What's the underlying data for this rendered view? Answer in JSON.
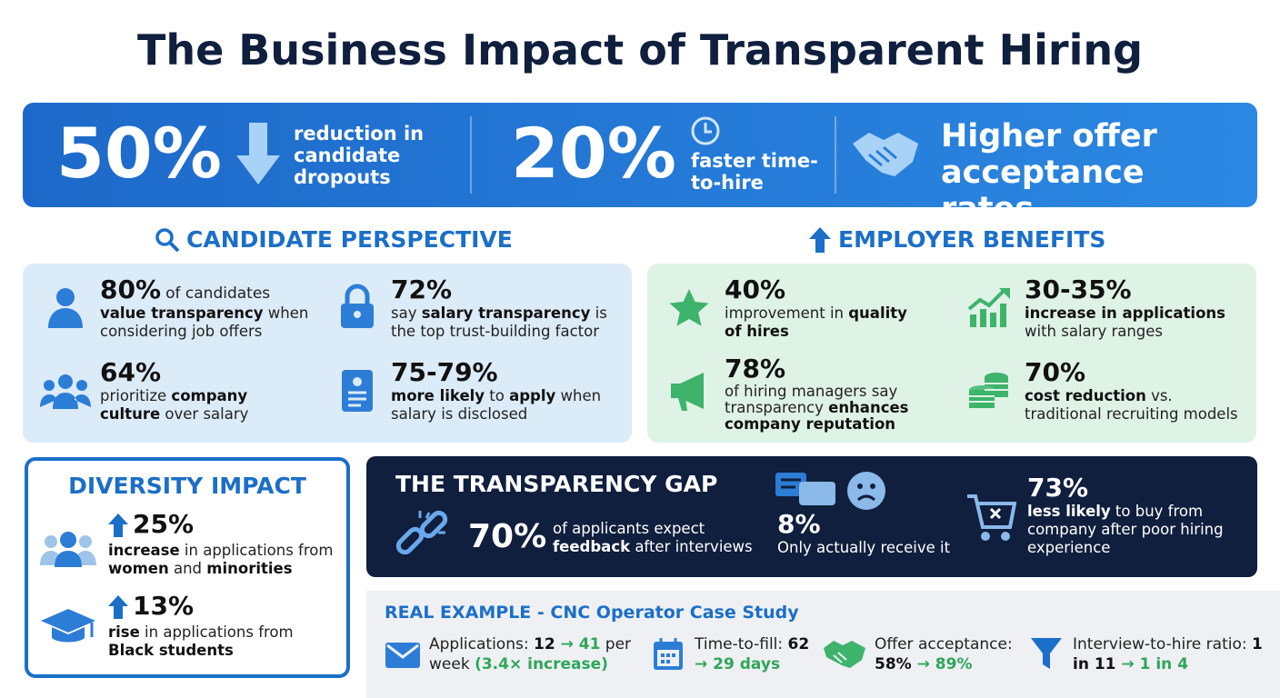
{
  "title": "The Business Impact of Transparent Hiring",
  "banner": {
    "items": [
      {
        "value": "50%",
        "text": "reduction in candidate dropouts"
      },
      {
        "value": "20%",
        "text": "faster time-to-hire"
      },
      {
        "text": "Higher offer acceptance rates"
      }
    ]
  },
  "candidate": {
    "heading": "CANDIDATE PERSPECTIVE",
    "stats": [
      {
        "value": "80%",
        "lead": "of candidates",
        "text": [
          {
            "bold": "value transparency"
          },
          {
            "plain": " when considering job offers"
          }
        ]
      },
      {
        "value": "72%",
        "text": [
          {
            "plain": "say "
          },
          {
            "bold": "salary transparency"
          },
          {
            "plain": " is the top trust-building factor"
          }
        ]
      },
      {
        "value": "64%",
        "text": [
          {
            "plain": "prioritize "
          },
          {
            "bold": "company culture"
          },
          {
            "plain": " over salary"
          }
        ]
      },
      {
        "value": "75-79%",
        "text": [
          {
            "bold": "more likely"
          },
          {
            "plain": " to "
          },
          {
            "bold": "apply"
          },
          {
            "plain": " when salary is disclosed"
          }
        ]
      }
    ]
  },
  "employer": {
    "heading": "EMPLOYER BENEFITS",
    "stats": [
      {
        "value": "40%",
        "text": [
          {
            "plain": "improvement in "
          },
          {
            "bold": "quality of hires"
          }
        ]
      },
      {
        "value": "30-35%",
        "text": [
          {
            "bold": "increase in applications"
          },
          {
            "plain": " with salary ranges"
          }
        ]
      },
      {
        "value": "78%",
        "text": [
          {
            "plain": "of hiring managers say transparency "
          },
          {
            "bold": "enhances company reputation"
          }
        ]
      },
      {
        "value": "70%",
        "text": [
          {
            "bold": "cost reduction"
          },
          {
            "plain": " vs. traditional recruiting models"
          }
        ]
      }
    ]
  },
  "diversity": {
    "heading": "DIVERSITY IMPACT",
    "stats": [
      {
        "value": "25%",
        "text": [
          {
            "bold": "increase"
          },
          {
            "plain": " in applications from "
          },
          {
            "bold": "women"
          },
          {
            "plain": " and "
          },
          {
            "bold": "minorities"
          }
        ]
      },
      {
        "value": "13%",
        "text": [
          {
            "bold": "rise"
          },
          {
            "plain": " in applications from "
          },
          {
            "bold": "Black students"
          }
        ]
      }
    ]
  },
  "gap": {
    "heading": "THE TRANSPARENCY GAP",
    "items": [
      {
        "value": "70%",
        "text": [
          {
            "plain": "of applicants expect "
          },
          {
            "bold": "feedback"
          },
          {
            "plain": " after interviews"
          }
        ]
      },
      {
        "value": "8%",
        "text": [
          {
            "plain": "Only actually receive it"
          }
        ]
      },
      {
        "value": "73%",
        "text": [
          {
            "bold": "less likely"
          },
          {
            "plain": " to buy from company after poor hiring experience"
          }
        ]
      }
    ]
  },
  "example": {
    "heading": "REAL EXAMPLE - CNC Operator Case Study",
    "items": [
      {
        "text": [
          {
            "plain": "Applications: "
          },
          {
            "bold": "12"
          },
          {
            "green": " → 41"
          },
          {
            "plain": " per week "
          },
          {
            "green": "(3.4× increase)"
          }
        ]
      },
      {
        "text": [
          {
            "plain": "Time-to-fill: "
          },
          {
            "bold": "62"
          },
          {
            "green": " → 29 days"
          }
        ]
      },
      {
        "text": [
          {
            "plain": "Offer acceptance: "
          },
          {
            "bold": "58%"
          },
          {
            "green": " → 89%"
          }
        ]
      },
      {
        "text": [
          {
            "plain": "Interview-to-hire ratio: "
          },
          {
            "bold": "1 in 11"
          },
          {
            "green": " → 1 in 4"
          }
        ]
      }
    ]
  }
}
